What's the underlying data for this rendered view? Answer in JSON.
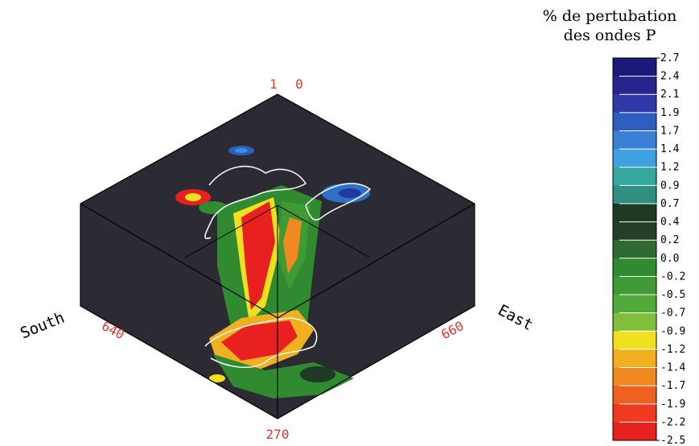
{
  "legend": {
    "title_line1": "% de pertubation",
    "title_line2": "des ondes P",
    "ticks": [
      "2.7",
      "2.4",
      "2.1",
      "1.9",
      "1.7",
      "1.4",
      "1.2",
      "0.9",
      "0.7",
      "0.4",
      "0.2",
      "0.0",
      "-0.2",
      "-0.5",
      "-0.7",
      "-0.9",
      "-1.2",
      "-1.4",
      "-1.7",
      "-1.9",
      "-2.2",
      "-2.5"
    ],
    "colors": [
      "#1c1a78",
      "#26248f",
      "#2f3aa8",
      "#2f5ec0",
      "#3a80d6",
      "#3fa0e0",
      "#35a6a0",
      "#2f8f80",
      "#1e3a24",
      "#243f28",
      "#2f6a30",
      "#2f8a30",
      "#3f9a35",
      "#52a838",
      "#7fbf3a",
      "#f0e020",
      "#f0b020",
      "#f08a20",
      "#f06020",
      "#f03a20",
      "#e82020"
    ]
  },
  "axes": {
    "top_label_1": "1",
    "top_label_0": "0",
    "south_word": "South",
    "south_num": "640",
    "east_word": "East",
    "east_num": "660",
    "bottom_num": "270"
  }
}
